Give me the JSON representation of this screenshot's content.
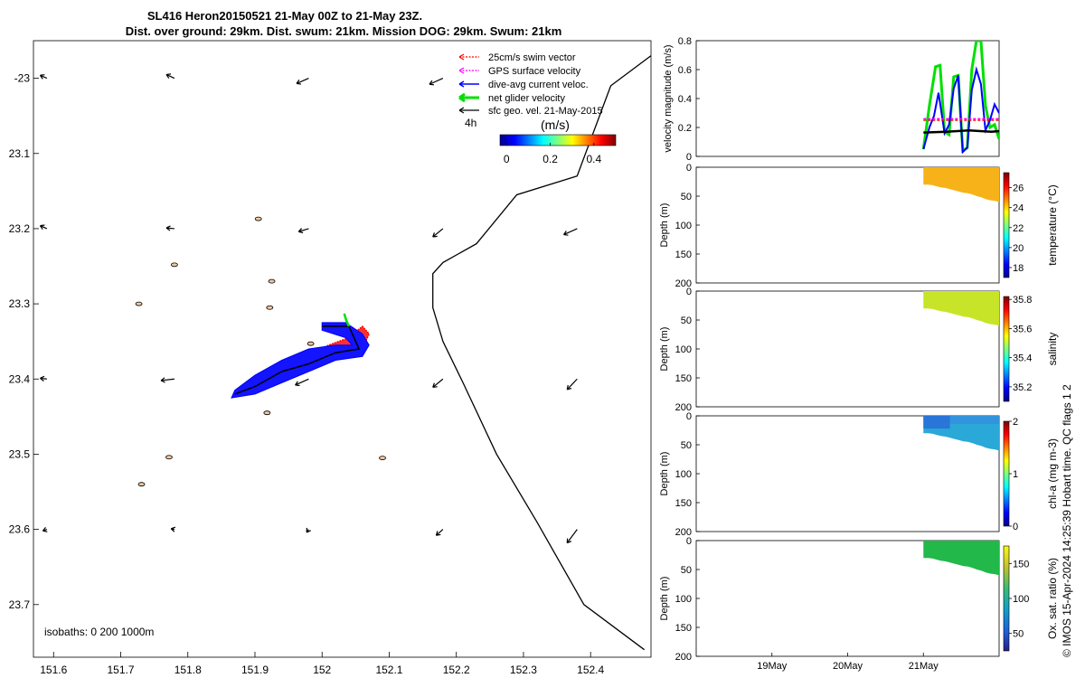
{
  "title_line1": "SL416 Heron20150521 21-May 00Z to 21-May 23Z.",
  "title_line2": "Dist. over ground: 29km. Dist. swum: 21km. Mission DOG: 29km. Swum: 21km",
  "credit": "© IMOS 15-Apr-2024 14:25:39 Hobart time. QC flags 1  2",
  "colors": {
    "swim_vector": "#ff0000",
    "gps_velocity": "#ff00ff",
    "dive_avg_current": "#0000ff",
    "net_glider_velocity": "#00e000",
    "sfc_geo_velocity": "#000000",
    "island_fill": "#f4c7a0"
  },
  "chart_data": [
    {
      "type": "map",
      "name": "track-map",
      "xlim": [
        151.57,
        152.49
      ],
      "ylim": [
        -23.77,
        -22.95
      ],
      "xticks": [
        151.6,
        151.7,
        151.8,
        151.9,
        152,
        152.1,
        152.2,
        152.3,
        152.4
      ],
      "xtick_labels": [
        "151.6",
        "151.7",
        "151.8",
        "151.9",
        "152",
        "152.1",
        "152.2",
        "152.3",
        "152.4"
      ],
      "yticks": [
        -23,
        -23.1,
        -23.2,
        -23.3,
        -23.4,
        -23.5,
        -23.6,
        -23.7
      ],
      "ytick_labels": [
        "-23",
        "23.1",
        "23.2",
        "23.3",
        "23.4",
        "23.5",
        "23.6",
        "23.7"
      ],
      "legend": {
        "placement": "top-right",
        "entries": [
          "25cm/s swim vector",
          "GPS surface velocity",
          "dive-avg current veloc.",
          "net glider velocity",
          "sfc geo. vel. 21-May-2015"
        ]
      },
      "colorbar": {
        "label": "(m/s)",
        "time_label": "4h",
        "range": [
          -0.03,
          0.5
        ],
        "ticks": [
          0,
          0.2,
          0.4
        ],
        "tick_labels": [
          "0",
          "0.2",
          "0.4"
        ]
      },
      "isobath_text": "isobaths: 0   200  1000m",
      "coastline": [
        [
          152.49,
          -22.97
        ],
        [
          152.43,
          -23.01
        ],
        [
          152.38,
          -23.13
        ],
        [
          152.29,
          -23.155
        ],
        [
          152.23,
          -23.22
        ],
        [
          152.18,
          -23.245
        ],
        [
          152.165,
          -23.26
        ],
        [
          152.165,
          -23.305
        ],
        [
          152.18,
          -23.35
        ],
        [
          152.21,
          -23.405
        ],
        [
          152.26,
          -23.5
        ],
        [
          152.32,
          -23.59
        ],
        [
          152.39,
          -23.7
        ],
        [
          152.48,
          -23.76
        ]
      ],
      "islands": [
        [
          151.727,
          -23.3
        ],
        [
          151.78,
          -23.248
        ],
        [
          151.731,
          -23.54
        ],
        [
          151.918,
          -23.445
        ],
        [
          151.983,
          -23.353
        ],
        [
          151.905,
          -23.187
        ],
        [
          151.925,
          -23.27
        ],
        [
          151.922,
          -23.305
        ],
        [
          152.09,
          -23.505
        ],
        [
          151.772,
          -23.504
        ]
      ],
      "geo_vectors": [
        {
          "lon": 151.59,
          "lat": -23.0,
          "u": -0.01,
          "v": 0.004
        },
        {
          "lon": 151.78,
          "lat": -23.0,
          "u": -0.012,
          "v": 0.005
        },
        {
          "lon": 151.98,
          "lat": -23.0,
          "u": -0.018,
          "v": -0.007
        },
        {
          "lon": 152.18,
          "lat": -23.0,
          "u": -0.02,
          "v": -0.008
        },
        {
          "lon": 151.59,
          "lat": -23.2,
          "u": -0.01,
          "v": 0.004
        },
        {
          "lon": 151.78,
          "lat": -23.2,
          "u": -0.012,
          "v": 0.001
        },
        {
          "lon": 151.98,
          "lat": -23.2,
          "u": -0.015,
          "v": -0.004
        },
        {
          "lon": 152.18,
          "lat": -23.2,
          "u": -0.015,
          "v": -0.011
        },
        {
          "lon": 152.38,
          "lat": -23.2,
          "u": -0.02,
          "v": -0.008
        },
        {
          "lon": 151.59,
          "lat": -23.4,
          "u": -0.01,
          "v": 0.001
        },
        {
          "lon": 151.78,
          "lat": -23.4,
          "u": -0.02,
          "v": -0.002
        },
        {
          "lon": 151.98,
          "lat": -23.4,
          "u": -0.02,
          "v": -0.008
        },
        {
          "lon": 152.18,
          "lat": -23.4,
          "u": -0.015,
          "v": -0.011
        },
        {
          "lon": 152.38,
          "lat": -23.4,
          "u": -0.015,
          "v": -0.014
        },
        {
          "lon": 151.59,
          "lat": -23.6,
          "u": -0.006,
          "v": -0.002
        },
        {
          "lon": 151.78,
          "lat": -23.6,
          "u": -0.005,
          "v": 0.001
        },
        {
          "lon": 151.98,
          "lat": -23.6,
          "u": -0.003,
          "v": -0.004
        },
        {
          "lon": 152.18,
          "lat": -23.6,
          "u": -0.01,
          "v": -0.008
        },
        {
          "lon": 152.38,
          "lat": -23.6,
          "u": -0.015,
          "v": -0.018
        }
      ],
      "glider_track": [
        [
          151.87,
          -23.42
        ],
        [
          151.9,
          -23.41
        ],
        [
          151.94,
          -23.39
        ],
        [
          151.98,
          -23.38
        ],
        [
          152.02,
          -23.365
        ],
        [
          152.055,
          -23.36
        ],
        [
          152.04,
          -23.33
        ],
        [
          152.0,
          -23.33
        ]
      ],
      "current_band": [
        [
          151.865,
          -23.425
        ],
        [
          151.9,
          -23.42
        ],
        [
          151.94,
          -23.405
        ],
        [
          151.98,
          -23.39
        ],
        [
          152.02,
          -23.375
        ],
        [
          152.06,
          -23.37
        ],
        [
          152.07,
          -23.355
        ],
        [
          152.06,
          -23.34
        ],
        [
          152.035,
          -23.325
        ],
        [
          152.0,
          -23.325
        ],
        [
          152.0,
          -23.335
        ],
        [
          152.035,
          -23.345
        ],
        [
          152.045,
          -23.355
        ],
        [
          152.02,
          -23.355
        ],
        [
          151.98,
          -23.36
        ],
        [
          151.94,
          -23.375
        ],
        [
          151.9,
          -23.395
        ],
        [
          151.87,
          -23.415
        ]
      ],
      "swim_band": [
        [
          151.89,
          -23.405
        ],
        [
          151.93,
          -23.385
        ],
        [
          151.97,
          -23.37
        ],
        [
          152.01,
          -23.355
        ],
        [
          152.04,
          -23.345
        ],
        [
          152.06,
          -23.33
        ],
        [
          152.07,
          -23.34
        ],
        [
          152.06,
          -23.36
        ],
        [
          152.03,
          -23.37
        ],
        [
          152.0,
          -23.38
        ],
        [
          151.96,
          -23.39
        ],
        [
          151.93,
          -23.405
        ],
        [
          151.9,
          -23.415
        ]
      ],
      "net_vector": [
        [
          152.033,
          -23.313
        ],
        [
          152.036,
          -23.322
        ],
        [
          152.04,
          -23.33
        ]
      ]
    },
    {
      "type": "line",
      "name": "velocity-panel",
      "ylabel": "velocity magnitude (m/s)",
      "ylim": [
        0,
        0.8
      ],
      "yticks": [
        0,
        0.2,
        0.4,
        0.6,
        0.8
      ],
      "ytick_labels": [
        "0",
        "0.2",
        "0.4",
        "0.6",
        "0.8"
      ],
      "xlim": [
        18.0,
        22.0
      ],
      "series": [
        {
          "key": "net",
          "color": "#00e000",
          "x": [
            21.0,
            21.08,
            21.16,
            21.22,
            21.28,
            21.34,
            21.4,
            21.46,
            21.52,
            21.58,
            21.64,
            21.7,
            21.76,
            21.82,
            21.88,
            21.94,
            22.0
          ],
          "y": [
            0.05,
            0.35,
            0.62,
            0.63,
            0.17,
            0.15,
            0.55,
            0.56,
            0.04,
            0.06,
            0.6,
            0.8,
            0.8,
            0.35,
            0.2,
            0.22,
            0.12
          ]
        },
        {
          "key": "current",
          "color": "#0000ff",
          "x": [
            21.0,
            21.08,
            21.14,
            21.2,
            21.28,
            21.34,
            21.4,
            21.46,
            21.52,
            21.58,
            21.64,
            21.7,
            21.76,
            21.82,
            21.88,
            21.94,
            22.0
          ],
          "y": [
            0.05,
            0.2,
            0.28,
            0.44,
            0.16,
            0.22,
            0.47,
            0.56,
            0.03,
            0.06,
            0.46,
            0.6,
            0.5,
            0.18,
            0.25,
            0.36,
            0.3
          ]
        },
        {
          "key": "swim",
          "color": "#ff0000",
          "dashed": true,
          "x": [
            21.0,
            22.0
          ],
          "y": [
            0.25,
            0.25
          ]
        },
        {
          "key": "gps",
          "color": "#ff00ff",
          "dashed": true,
          "x": [
            21.0,
            22.0
          ],
          "y": [
            0.26,
            0.26
          ]
        },
        {
          "key": "geo",
          "color": "#000000",
          "width": 2.5,
          "x": [
            21.0,
            21.3,
            21.6,
            21.9,
            22.0
          ],
          "y": [
            0.165,
            0.17,
            0.18,
            0.17,
            0.175
          ]
        }
      ]
    },
    {
      "type": "heatmap",
      "name": "temperature-panel",
      "ylabel": "Depth (m)",
      "cbar_label": "temperature (°C)",
      "ylim": [
        0,
        200
      ],
      "yticks": [
        0,
        50,
        100,
        150,
        200
      ],
      "ytick_labels": [
        "0",
        "50",
        "100",
        "150",
        "200"
      ],
      "cbar_range": [
        17,
        27.5
      ],
      "cbar_ticks": [
        18,
        20,
        22,
        24,
        26
      ],
      "cbar_tick_labels": [
        "18",
        "20",
        "22",
        "24",
        "26"
      ],
      "data_x": [
        21.0,
        22.0
      ],
      "depth_top": 0,
      "depth_bottom": [
        30,
        30,
        31,
        33,
        35,
        36,
        38,
        40,
        42,
        44,
        45,
        47,
        50,
        52,
        55,
        57,
        58,
        60
      ],
      "value": 25.8
    },
    {
      "type": "heatmap",
      "name": "salinity-panel",
      "ylabel": "Depth (m)",
      "cbar_label": "salinity",
      "ylim": [
        0,
        200
      ],
      "yticks": [
        0,
        50,
        100,
        150,
        200
      ],
      "ytick_labels": [
        "0",
        "50",
        "100",
        "150",
        "200"
      ],
      "cbar_range": [
        35.1,
        35.82
      ],
      "cbar_ticks": [
        35.2,
        35.4,
        35.6,
        35.8
      ],
      "cbar_tick_labels": [
        "35.2",
        "35.4",
        "35.6",
        "35.8"
      ],
      "data_x": [
        21.0,
        22.0
      ],
      "depth_top": 0,
      "depth_bottom": [
        30,
        30,
        31,
        33,
        35,
        36,
        38,
        40,
        42,
        44,
        45,
        47,
        50,
        52,
        55,
        57,
        58,
        60
      ],
      "value": 35.58
    },
    {
      "type": "heatmap",
      "name": "chla-panel",
      "ylabel": "Depth (m)",
      "cbar_label": "chl-a (mg m-3)",
      "ylim": [
        0,
        200
      ],
      "yticks": [
        0,
        50,
        100,
        150,
        200
      ],
      "ytick_labels": [
        "0",
        "50",
        "100",
        "150",
        "200"
      ],
      "cbar_range": [
        0,
        2
      ],
      "cbar_ticks": [
        0,
        1,
        2
      ],
      "cbar_tick_labels": [
        "0",
        "1",
        "2"
      ],
      "data_x": [
        21.0,
        22.0
      ],
      "depth_top": 0,
      "depth_bottom": [
        30,
        30,
        31,
        33,
        35,
        36,
        38,
        40,
        42,
        44,
        45,
        47,
        50,
        52,
        55,
        57,
        58,
        60
      ],
      "value": 0.62
    },
    {
      "type": "heatmap",
      "name": "oxygen-panel",
      "ylabel": "Depth (m)",
      "cbar_label": "Ox. sat. ratio (%)",
      "ylim": [
        0,
        200
      ],
      "yticks": [
        0,
        50,
        100,
        150,
        200
      ],
      "ytick_labels": [
        "0",
        "50",
        "100",
        "150",
        "200"
      ],
      "cbar_range": [
        25,
        175
      ],
      "cbar_ticks": [
        50,
        100,
        150
      ],
      "cbar_tick_labels": [
        "50",
        "100",
        "150"
      ],
      "data_x": [
        21.0,
        22.0
      ],
      "depth_top": 0,
      "depth_bottom": [
        30,
        30,
        31,
        33,
        35,
        36,
        38,
        40,
        42,
        44,
        45,
        47,
        50,
        52,
        55,
        57,
        58,
        60
      ],
      "value": 98,
      "xticks": [
        19,
        20,
        21
      ],
      "xtick_labels": [
        "19May",
        "20May",
        "21May"
      ]
    }
  ]
}
